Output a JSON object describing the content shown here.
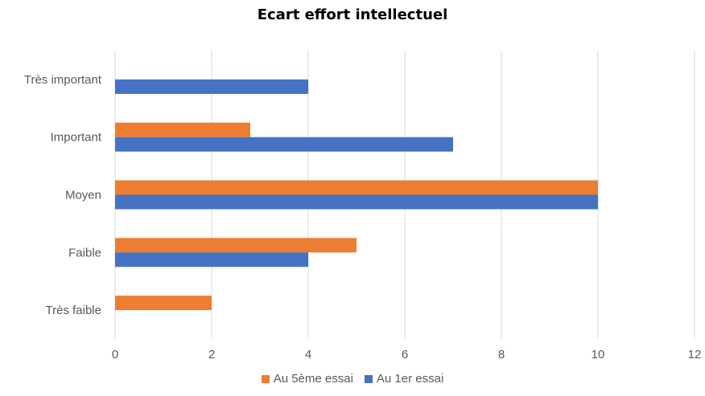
{
  "chart_data": {
    "type": "bar",
    "orientation": "horizontal",
    "title": "Ecart effort intellectuel",
    "categories": [
      "Très faible",
      "Faible",
      "Moyen",
      "Important",
      "Très important"
    ],
    "series": [
      {
        "name": "Au 5ème essai",
        "color": "#ED7D31",
        "values": [
          2,
          5,
          10,
          2.8,
          0
        ]
      },
      {
        "name": "Au 1er essai",
        "color": "#4472C4",
        "values": [
          0,
          4,
          10,
          7,
          4
        ]
      }
    ],
    "xlim": [
      0,
      12
    ],
    "xticks": [
      "0",
      "2",
      "4",
      "6",
      "8",
      "10",
      "12"
    ],
    "grid": true,
    "legend_position": "bottom"
  }
}
